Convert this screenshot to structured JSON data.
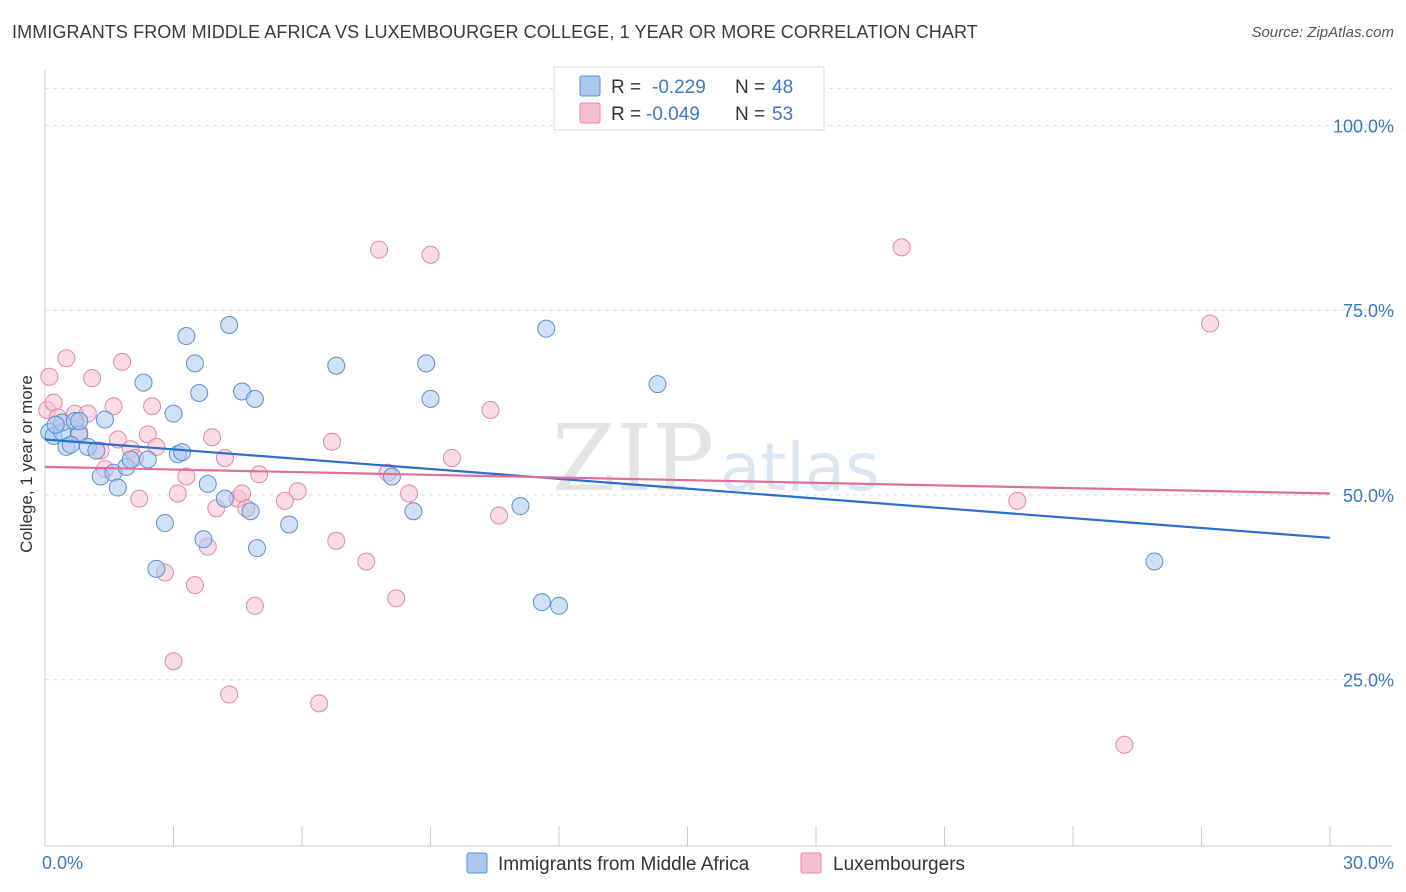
{
  "title": "IMMIGRANTS FROM MIDDLE AFRICA VS LUXEMBOURGER COLLEGE, 1 YEAR OR MORE CORRELATION CHART",
  "source": "Source: ZipAtlas.com",
  "watermark": {
    "zip": "ZIP",
    "atlas": "atlas"
  },
  "colors": {
    "blue_fill": "#aac8ee",
    "blue_stroke": "#5b8fd4",
    "blue_line": "#2a6fce",
    "pink_fill": "#f6bfcf",
    "pink_stroke": "#e487a5",
    "pink_line": "#e0709a",
    "grid": "#dddddd",
    "tick_text": "#3b78c4"
  },
  "legend": {
    "rows": [
      {
        "r_label": "R =",
        "r_value": "-0.229",
        "n_label": "N =",
        "n_value": "48"
      },
      {
        "r_label": "R =",
        "r_value": "-0.049",
        "n_label": "N =",
        "n_value": "53"
      }
    ]
  },
  "chart_data": {
    "type": "scatter",
    "title": "IMMIGRANTS FROM MIDDLE AFRICA VS LUXEMBOURGER COLLEGE, 1 YEAR OR MORE CORRELATION CHART",
    "xlabel": "",
    "ylabel": "College, 1 year or more",
    "xlim": [
      0,
      30
    ],
    "ylim": [
      2.5,
      107.5
    ],
    "x_tick_labels": [
      "0.0%",
      "30.0%"
    ],
    "y_ticks": [
      25,
      50,
      75,
      100
    ],
    "y_tick_labels": [
      "25.0%",
      "50.0%",
      "75.0%",
      "100.0%"
    ],
    "grid": true,
    "legend_position": "top-center",
    "series": [
      {
        "name": "Immigrants from Middle Africa",
        "r": -0.229,
        "n": 48,
        "trend": {
          "x": [
            0,
            30
          ],
          "y": [
            57.5,
            44.2
          ]
        },
        "points": [
          [
            0.1,
            58.5
          ],
          [
            0.2,
            58.0
          ],
          [
            0.4,
            58.5
          ],
          [
            0.5,
            56.5
          ],
          [
            0.4,
            59.8
          ],
          [
            0.7,
            60.0
          ],
          [
            0.8,
            58.2
          ],
          [
            1.0,
            56.5
          ],
          [
            1.2,
            56.0
          ],
          [
            1.4,
            60.2
          ],
          [
            1.3,
            52.5
          ],
          [
            1.6,
            53.0
          ],
          [
            1.7,
            51.0
          ],
          [
            1.9,
            53.8
          ],
          [
            2.0,
            54.8
          ],
          [
            2.4,
            54.8
          ],
          [
            2.3,
            65.2
          ],
          [
            2.8,
            46.2
          ],
          [
            3.0,
            61.0
          ],
          [
            3.1,
            55.5
          ],
          [
            3.2,
            55.8
          ],
          [
            3.3,
            71.5
          ],
          [
            3.5,
            67.8
          ],
          [
            3.6,
            63.8
          ],
          [
            3.7,
            44.0
          ],
          [
            3.8,
            51.5
          ],
          [
            4.2,
            49.5
          ],
          [
            4.3,
            73.0
          ],
          [
            4.6,
            64.0
          ],
          [
            4.8,
            47.8
          ],
          [
            4.9,
            63.0
          ],
          [
            4.95,
            42.8
          ],
          [
            5.7,
            46.0
          ],
          [
            6.8,
            67.5
          ],
          [
            8.1,
            52.5
          ],
          [
            8.6,
            47.8
          ],
          [
            8.9,
            67.8
          ],
          [
            9.0,
            63.0
          ],
          [
            11.1,
            48.5
          ],
          [
            11.6,
            35.5
          ],
          [
            11.7,
            72.5
          ],
          [
            12.0,
            35.0
          ],
          [
            14.3,
            65.0
          ],
          [
            25.9,
            41.0
          ],
          [
            2.6,
            40.0
          ],
          [
            0.8,
            60.0
          ],
          [
            0.25,
            59.5
          ],
          [
            0.6,
            56.8
          ]
        ]
      },
      {
        "name": "Luxembourgers",
        "r": -0.049,
        "n": 53,
        "trend": {
          "x": [
            0,
            30
          ],
          "y": [
            53.8,
            50.2
          ]
        },
        "points": [
          [
            0.05,
            61.5
          ],
          [
            0.1,
            66.0
          ],
          [
            0.2,
            62.5
          ],
          [
            0.3,
            60.5
          ],
          [
            0.5,
            68.5
          ],
          [
            0.7,
            61.0
          ],
          [
            0.8,
            58.5
          ],
          [
            1.0,
            61.0
          ],
          [
            1.1,
            65.8
          ],
          [
            1.3,
            56.0
          ],
          [
            1.4,
            53.5
          ],
          [
            1.6,
            62.0
          ],
          [
            1.7,
            57.5
          ],
          [
            1.8,
            68.0
          ],
          [
            2.0,
            56.2
          ],
          [
            2.1,
            55.0
          ],
          [
            2.2,
            49.5
          ],
          [
            2.4,
            58.2
          ],
          [
            2.5,
            62.0
          ],
          [
            2.6,
            56.5
          ],
          [
            2.8,
            39.5
          ],
          [
            3.0,
            27.5
          ],
          [
            3.1,
            50.2
          ],
          [
            3.3,
            52.5
          ],
          [
            3.5,
            37.8
          ],
          [
            3.8,
            43.0
          ],
          [
            3.9,
            57.8
          ],
          [
            4.0,
            48.2
          ],
          [
            4.2,
            55.0
          ],
          [
            4.3,
            23.0
          ],
          [
            4.5,
            49.5
          ],
          [
            4.6,
            50.2
          ],
          [
            4.7,
            48.2
          ],
          [
            4.9,
            35.0
          ],
          [
            5.0,
            52.8
          ],
          [
            5.6,
            49.2
          ],
          [
            5.9,
            50.5
          ],
          [
            6.4,
            21.8
          ],
          [
            6.7,
            57.2
          ],
          [
            6.8,
            43.8
          ],
          [
            7.5,
            41.0
          ],
          [
            7.8,
            83.2
          ],
          [
            8.0,
            53.0
          ],
          [
            8.2,
            36.0
          ],
          [
            8.5,
            50.2
          ],
          [
            9.0,
            82.5
          ],
          [
            9.5,
            55.0
          ],
          [
            10.4,
            61.5
          ],
          [
            10.6,
            47.2
          ],
          [
            20.0,
            83.5
          ],
          [
            22.7,
            49.2
          ],
          [
            25.2,
            16.2
          ],
          [
            27.2,
            73.2
          ]
        ]
      }
    ]
  }
}
